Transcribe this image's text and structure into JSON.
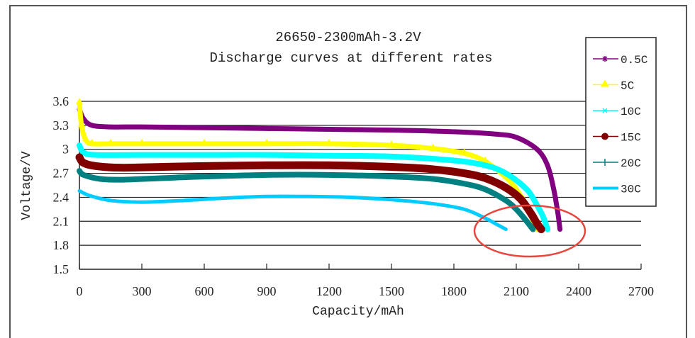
{
  "chart_data": {
    "type": "line",
    "title": "26650-2300mAh-3.2V",
    "subtitle": "Discharge curves at different rates",
    "xlabel": "Capacity/mAh",
    "ylabel": "Voltage/V",
    "xlim": [
      0,
      2700
    ],
    "ylim": [
      1.5,
      3.6
    ],
    "xticks": [
      "0",
      "300",
      "600",
      "900",
      "1200",
      "1500",
      "1800",
      "2100",
      "2400",
      "2700"
    ],
    "yticks": [
      "3.6",
      "3.3",
      "3",
      "2.7",
      "2.4",
      "2.1",
      "1.8",
      "1.5"
    ],
    "ytick_values": [
      3.6,
      3.3,
      3.0,
      2.7,
      2.4,
      2.1,
      1.8,
      1.5
    ],
    "xtick_values": [
      0,
      300,
      600,
      900,
      1200,
      1500,
      1800,
      2100,
      2400,
      2700
    ],
    "grid": "horizontal",
    "legend_position": "right",
    "annotation": "red ellipse highlighting end-of-discharge region (~2000-2300 mAh, ~2.0 V)",
    "series": [
      {
        "name": "0.5C",
        "color": "#800080",
        "marker": "asterisk",
        "x": [
          0,
          20,
          60,
          150,
          300,
          600,
          900,
          1200,
          1500,
          1800,
          2000,
          2100,
          2200,
          2250,
          2280,
          2300,
          2310
        ],
        "y": [
          3.5,
          3.38,
          3.3,
          3.28,
          3.28,
          3.27,
          3.26,
          3.25,
          3.24,
          3.22,
          3.19,
          3.15,
          3.0,
          2.8,
          2.5,
          2.2,
          2.0
        ]
      },
      {
        "name": "5C",
        "color": "#ffff00",
        "marker": "triangle",
        "x": [
          0,
          10,
          30,
          60,
          150,
          300,
          600,
          900,
          1200,
          1500,
          1700,
          1850,
          1950,
          2050,
          2100,
          2150,
          2180,
          2200
        ],
        "y": [
          3.58,
          3.3,
          3.12,
          3.07,
          3.07,
          3.07,
          3.07,
          3.07,
          3.07,
          3.05,
          3.01,
          2.95,
          2.85,
          2.65,
          2.5,
          2.3,
          2.1,
          2.0
        ]
      },
      {
        "name": "10C",
        "color": "#00ffff",
        "marker": "x",
        "x": [
          0,
          20,
          80,
          300,
          600,
          900,
          1200,
          1500,
          1800,
          1950,
          2050,
          2150,
          2200,
          2230,
          2250
        ],
        "y": [
          3.05,
          2.96,
          2.93,
          2.93,
          2.93,
          2.93,
          2.92,
          2.91,
          2.86,
          2.8,
          2.7,
          2.5,
          2.3,
          2.15,
          2.0
        ]
      },
      {
        "name": "15C",
        "color": "#800000",
        "marker": "circle",
        "x": [
          0,
          20,
          80,
          200,
          400,
          600,
          900,
          1200,
          1500,
          1700,
          1850,
          1950,
          2050,
          2120,
          2170,
          2200,
          2220
        ],
        "y": [
          2.9,
          2.83,
          2.79,
          2.77,
          2.78,
          2.79,
          2.8,
          2.8,
          2.78,
          2.75,
          2.7,
          2.64,
          2.52,
          2.38,
          2.2,
          2.07,
          2.0
        ]
      },
      {
        "name": "20C",
        "color": "#008080",
        "marker": "plus",
        "x": [
          0,
          20,
          100,
          200,
          400,
          600,
          900,
          1200,
          1500,
          1700,
          1850,
          1950,
          2050,
          2100,
          2150,
          2180
        ],
        "y": [
          2.73,
          2.68,
          2.63,
          2.62,
          2.64,
          2.66,
          2.68,
          2.68,
          2.66,
          2.63,
          2.57,
          2.5,
          2.36,
          2.25,
          2.1,
          2.0
        ]
      },
      {
        "name": "30C",
        "color": "#00ccff",
        "marker": "none",
        "x": [
          0,
          50,
          150,
          300,
          500,
          700,
          900,
          1100,
          1300,
          1500,
          1700,
          1850,
          1950,
          2000,
          2050
        ],
        "y": [
          2.48,
          2.42,
          2.36,
          2.34,
          2.36,
          2.39,
          2.41,
          2.41,
          2.4,
          2.37,
          2.32,
          2.25,
          2.14,
          2.07,
          2.0
        ]
      }
    ]
  }
}
